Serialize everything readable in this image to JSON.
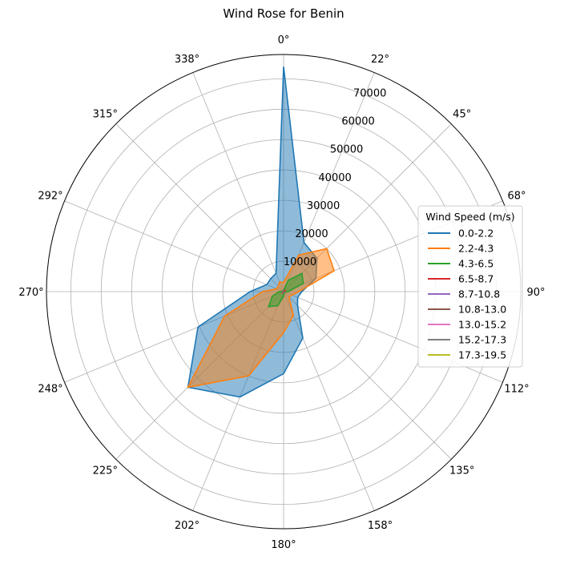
{
  "chart_data": {
    "type": "radar",
    "title": "Wind Rose for Benin",
    "direction_labels": [
      "0°",
      "22°",
      "45°",
      "68°",
      "90°",
      "112°",
      "135°",
      "158°",
      "180°",
      "202°",
      "225°",
      "248°",
      "270°",
      "292°",
      "315°",
      "338°"
    ],
    "directions_deg": [
      0,
      22.5,
      45,
      67.5,
      90,
      112.5,
      135,
      157.5,
      180,
      202.5,
      225,
      247.5,
      270,
      292.5,
      315,
      337.5
    ],
    "radial_ticks": [
      10000,
      20000,
      30000,
      40000,
      50000,
      60000,
      70000
    ],
    "radial_tick_labels": [
      "10000",
      "20000",
      "30000",
      "40000",
      "50000",
      "60000",
      "70000"
    ],
    "rlim": [
      0,
      78000
    ],
    "grid": true,
    "legend": {
      "title": "Wind Speed (m/s)",
      "placement": "right"
    },
    "series": [
      {
        "name": "0.0-2.2",
        "color": "#1f77b4",
        "values": [
          74000,
          17500,
          15500,
          11500,
          6000,
          5000,
          6500,
          16500,
          27000,
          37500,
          44500,
          30500,
          11000,
          6000,
          6000,
          6500
        ]
      },
      {
        "name": "2.2-4.3",
        "color": "#ff7f0e",
        "values": [
          3000,
          13000,
          20000,
          18000,
          5000,
          3000,
          2500,
          8500,
          13500,
          30000,
          44500,
          21000,
          7000,
          2500,
          2500,
          3500
        ]
      },
      {
        "name": "4.3-6.5",
        "color": "#2ca02c",
        "values": [
          300,
          4000,
          8500,
          7000,
          1500,
          400,
          300,
          500,
          1500,
          5000,
          7000,
          4000,
          1500,
          300,
          300,
          300
        ]
      },
      {
        "name": "6.5-8.7",
        "color": "#d62728",
        "values": [
          20,
          200,
          600,
          500,
          100,
          20,
          20,
          40,
          100,
          300,
          500,
          300,
          100,
          20,
          20,
          20
        ]
      },
      {
        "name": "8.7-10.8",
        "color": "#9467bd",
        "values": [
          0,
          10,
          50,
          40,
          10,
          0,
          0,
          0,
          10,
          20,
          40,
          20,
          10,
          0,
          0,
          0
        ]
      },
      {
        "name": "10.8-13.0",
        "color": "#8c564b",
        "values": [
          0,
          0,
          5,
          5,
          0,
          0,
          0,
          0,
          0,
          0,
          5,
          0,
          0,
          0,
          0,
          0
        ]
      },
      {
        "name": "13.0-15.2",
        "color": "#e377c2",
        "values": [
          0,
          0,
          0,
          0,
          0,
          0,
          0,
          0,
          0,
          0,
          0,
          0,
          0,
          0,
          0,
          0
        ]
      },
      {
        "name": "15.2-17.3",
        "color": "#7f7f7f",
        "values": [
          0,
          0,
          0,
          0,
          0,
          0,
          0,
          0,
          0,
          0,
          0,
          0,
          0,
          0,
          0,
          0
        ]
      },
      {
        "name": "17.3-19.5",
        "color": "#bcbd22",
        "values": [
          0,
          0,
          0,
          0,
          0,
          0,
          0,
          0,
          0,
          0,
          0,
          0,
          0,
          0,
          0,
          0
        ]
      }
    ]
  }
}
